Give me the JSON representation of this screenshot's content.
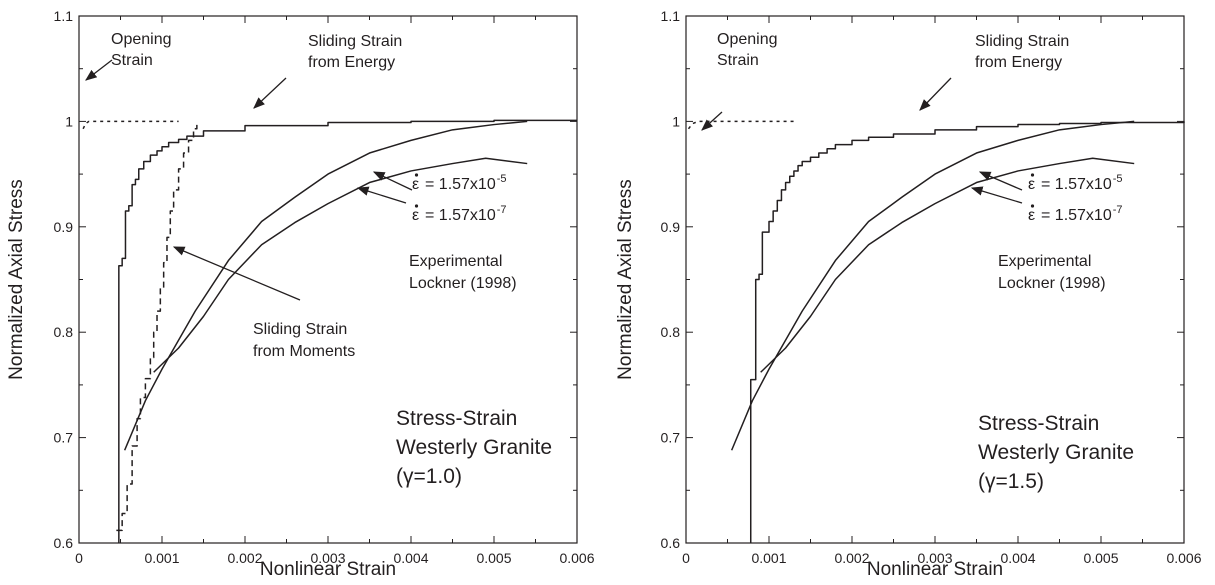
{
  "chart_data": [
    {
      "type": "line",
      "xlabel": "Nonlinear Strain",
      "ylabel": "Normalized Axial Stress",
      "xlim": [
        0,
        0.006
      ],
      "ylim": [
        0.6,
        1.1
      ],
      "x_ticks": [
        0,
        0.001,
        0.002,
        0.003,
        0.004,
        0.005,
        0.006
      ],
      "y_ticks": [
        0.6,
        0.7,
        0.8,
        0.9,
        1.0,
        1.1
      ],
      "x_tick_labels": [
        "0",
        "0.001",
        "0.002",
        "0.003",
        "0.004",
        "0.005",
        "0.006"
      ],
      "y_tick_labels": [
        "0.6",
        "0.7",
        "0.8",
        "0.9",
        "1",
        "1.1"
      ],
      "grid": false,
      "series": [
        {
          "style": "dotted",
          "x": [
            5e-05,
            8e-05,
            0.00012,
            0.0003,
            0.0006,
            0.0009,
            0.0012
          ],
          "y": [
            0.993,
            0.998,
            1.0,
            1.0,
            1.0,
            1.0,
            1.0
          ]
        },
        {
          "style": "solid",
          "step": true,
          "x": [
            0.00048,
            0.00048,
            0.00052,
            0.00056,
            0.0006,
            0.00064,
            0.00068,
            0.00072,
            0.00078,
            0.00086,
            0.00094,
            0.001,
            0.00108,
            0.0012,
            0.0013,
            0.0015,
            0.002,
            0.003,
            0.004,
            0.005,
            0.006
          ],
          "y": [
            0.6,
            0.863,
            0.87,
            0.915,
            0.92,
            0.94,
            0.945,
            0.955,
            0.962,
            0.968,
            0.972,
            0.976,
            0.98,
            0.983,
            0.986,
            0.991,
            0.996,
            0.999,
            1.0,
            1.001,
            1.001
          ]
        },
        {
          "style": "dashed",
          "step": true,
          "x": [
            0.00045,
            0.00052,
            0.00058,
            0.00064,
            0.0007,
            0.00074,
            0.0008,
            0.00086,
            0.0009,
            0.00094,
            0.00098,
            0.00102,
            0.00106,
            0.0011,
            0.00114,
            0.0012,
            0.00126,
            0.00132,
            0.00138,
            0.00142
          ],
          "y": [
            0.612,
            0.628,
            0.656,
            0.692,
            0.718,
            0.738,
            0.756,
            0.776,
            0.8,
            0.82,
            0.842,
            0.866,
            0.89,
            0.915,
            0.935,
            0.955,
            0.97,
            0.982,
            0.993,
            1.0
          ]
        },
        {
          "style": "solid",
          "x": [
            0.00055,
            0.0008,
            0.001,
            0.0014,
            0.0018,
            0.0022,
            0.0026,
            0.003,
            0.0035,
            0.004,
            0.0045,
            0.005,
            0.0054
          ],
          "y": [
            0.688,
            0.735,
            0.765,
            0.82,
            0.868,
            0.905,
            0.928,
            0.95,
            0.97,
            0.982,
            0.992,
            0.997,
            1.0
          ]
        },
        {
          "style": "solid",
          "x": [
            0.0009,
            0.0012,
            0.0015,
            0.0018,
            0.0022,
            0.0026,
            0.003,
            0.0035,
            0.004,
            0.0045,
            0.0049,
            0.0054
          ],
          "y": [
            0.762,
            0.785,
            0.815,
            0.85,
            0.883,
            0.904,
            0.922,
            0.942,
            0.953,
            0.96,
            0.965,
            0.96
          ]
        }
      ],
      "annotations": [
        {
          "lines": [
            "Opening",
            "Strain"
          ]
        },
        {
          "lines": [
            "Sliding Strain",
            "from Energy"
          ]
        },
        {
          "lines": [
            "= 1.57x10",
            "-5"
          ]
        },
        {
          "lines": [
            "= 1.57x10",
            "-7"
          ]
        },
        {
          "lines": [
            "Experimental",
            "Lockner (1998)"
          ]
        },
        {
          "lines": [
            "Sliding Strain",
            "from Moments"
          ]
        }
      ],
      "text_box": {
        "lines": [
          "Stress-Strain",
          "Westerly Granite",
          "(γ=1.0)"
        ]
      }
    },
    {
      "type": "line",
      "xlabel": "Nonlinear Strain",
      "ylabel": "Normalized Axial Stress",
      "xlim": [
        0,
        0.006
      ],
      "ylim": [
        0.6,
        1.1
      ],
      "x_ticks": [
        0,
        0.001,
        0.002,
        0.003,
        0.004,
        0.005,
        0.006
      ],
      "y_ticks": [
        0.6,
        0.7,
        0.8,
        0.9,
        1.0,
        1.1
      ],
      "x_tick_labels": [
        "0",
        "0.001",
        "0.002",
        "0.003",
        "0.004",
        "0.005",
        "0.006"
      ],
      "y_tick_labels": [
        "0.6",
        "0.7",
        "0.8",
        "0.9",
        "1",
        "1.1"
      ],
      "grid": false,
      "series": [
        {
          "style": "dotted",
          "x": [
            3e-05,
            8e-05,
            0.00015,
            0.0003,
            0.0006,
            0.0009,
            0.0013
          ],
          "y": [
            0.993,
            0.998,
            1.0,
            1.0,
            1.0,
            1.0,
            1.0
          ]
        },
        {
          "style": "solid",
          "step": true,
          "x": [
            0.00078,
            0.00078,
            0.00084,
            0.00088,
            0.00092,
            0.001,
            0.00105,
            0.0011,
            0.00115,
            0.0012,
            0.00125,
            0.0013,
            0.00135,
            0.0014,
            0.0015,
            0.0016,
            0.0017,
            0.0018,
            0.002,
            0.0022,
            0.0025,
            0.003,
            0.0035,
            0.004,
            0.0045,
            0.005,
            0.006
          ],
          "y": [
            0.6,
            0.755,
            0.85,
            0.855,
            0.895,
            0.905,
            0.915,
            0.925,
            0.935,
            0.942,
            0.948,
            0.953,
            0.958,
            0.962,
            0.966,
            0.97,
            0.974,
            0.978,
            0.982,
            0.985,
            0.988,
            0.992,
            0.995,
            0.997,
            0.998,
            0.999,
            1.0
          ]
        },
        {
          "style": "solid",
          "x": [
            0.00055,
            0.0008,
            0.001,
            0.0014,
            0.0018,
            0.0022,
            0.0026,
            0.003,
            0.0035,
            0.004,
            0.0045,
            0.005,
            0.0054
          ],
          "y": [
            0.688,
            0.735,
            0.765,
            0.82,
            0.868,
            0.905,
            0.928,
            0.95,
            0.97,
            0.982,
            0.992,
            0.997,
            1.0
          ]
        },
        {
          "style": "solid",
          "x": [
            0.0009,
            0.0012,
            0.0015,
            0.0018,
            0.0022,
            0.0026,
            0.003,
            0.0035,
            0.004,
            0.0045,
            0.0049,
            0.0054
          ],
          "y": [
            0.762,
            0.785,
            0.815,
            0.85,
            0.883,
            0.904,
            0.922,
            0.942,
            0.953,
            0.96,
            0.965,
            0.96
          ]
        }
      ],
      "annotations": [
        {
          "lines": [
            "Opening",
            "Strain"
          ]
        },
        {
          "lines": [
            "Sliding Strain",
            "from Energy"
          ]
        },
        {
          "lines": [
            "= 1.57x10",
            "-5"
          ]
        },
        {
          "lines": [
            "= 1.57x10",
            "-7"
          ]
        },
        {
          "lines": [
            "Experimental",
            "Lockner (1998)"
          ]
        }
      ],
      "text_box": {
        "lines": [
          "Stress-Strain",
          "Westerly Granite",
          "(γ=1.5)"
        ]
      }
    }
  ]
}
